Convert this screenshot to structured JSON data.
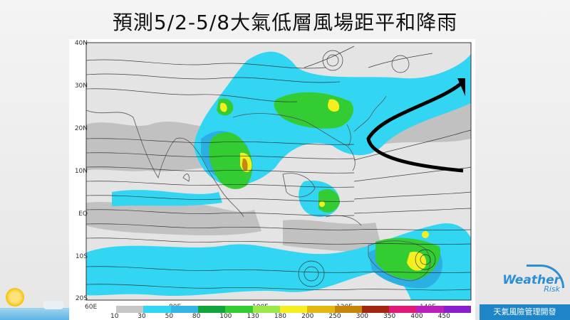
{
  "title": "預測5/2-5/8大氣低層風場距平和降雨",
  "map": {
    "lat_labels": [
      "40N",
      "30N",
      "20N",
      "10N",
      "EQ",
      "10S",
      "20S"
    ],
    "lon_labels": [
      "60E",
      "80E",
      "100E",
      "120E",
      "140E"
    ]
  },
  "legend": {
    "values": [
      "10",
      "30",
      "50",
      "80",
      "100",
      "130",
      "180",
      "200",
      "250",
      "300",
      "350",
      "400",
      "450"
    ],
    "colors": [
      "#c7c7c7",
      "#33d6f2",
      "#33b5e8",
      "#12a53b",
      "#33cc33",
      "#9be84a",
      "#f5ef1f",
      "#e3b80f",
      "#c5860c",
      "#a1280f",
      "#e3197a",
      "#bb20bb",
      "#8a1fd0"
    ]
  },
  "brand": {
    "name": "Weather",
    "sub": "Risk",
    "tagline": "天氣風險管理開發"
  }
}
